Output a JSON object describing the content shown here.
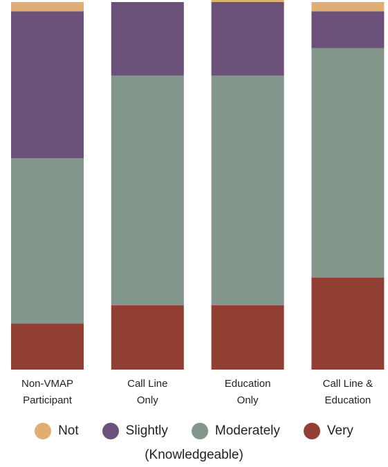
{
  "chart_data": {
    "type": "bar",
    "stacked": true,
    "normalized": true,
    "ylim": [
      0,
      100
    ],
    "categories": [
      [
        "Non-VMAP",
        "Participant"
      ],
      [
        "Call Line",
        "Only"
      ],
      [
        "Education",
        "Only"
      ],
      [
        "Call Line &",
        "Education"
      ]
    ],
    "series": [
      {
        "name": "Very",
        "color": "#913f33",
        "values": [
          12.5,
          17.5,
          17.5,
          25
        ]
      },
      {
        "name": "Moderately",
        "color": "#82968b",
        "values": [
          45,
          62.5,
          62.5,
          62.5
        ]
      },
      {
        "name": "Slightly",
        "color": "#6b5079",
        "values": [
          40,
          20,
          20,
          10
        ]
      },
      {
        "name": "Not",
        "color": "#e0ae70",
        "values": [
          2.5,
          0,
          2.5,
          2.5
        ]
      }
    ],
    "legend_order": [
      "Not",
      "Slightly",
      "Moderately",
      "Very"
    ],
    "caption": "(Knowledgeable)"
  }
}
